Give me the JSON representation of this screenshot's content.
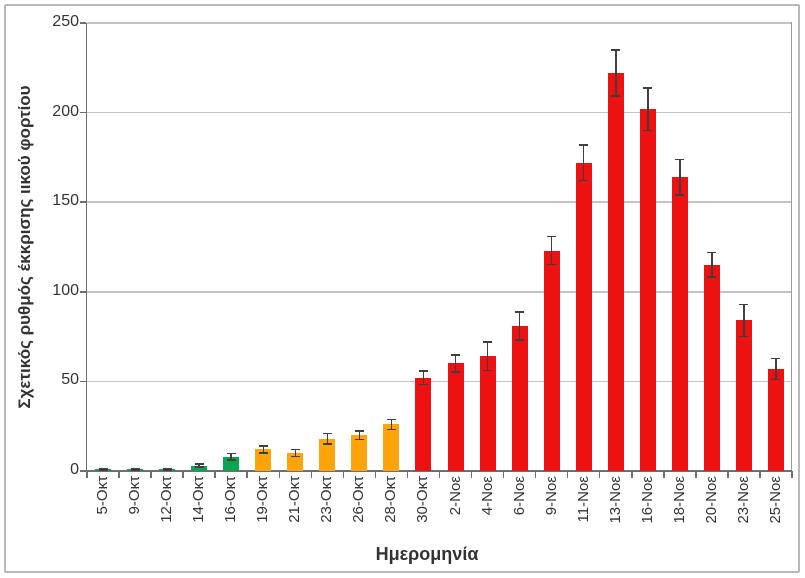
{
  "chart_data": {
    "type": "bar",
    "title": "",
    "xlabel": "Ημερομηνία",
    "ylabel": "Σχετικός ρυθμός έκκρισης ιικού φορτίου",
    "ylim": [
      0,
      250
    ],
    "yticks": [
      0,
      50,
      100,
      150,
      200,
      250
    ],
    "grid": true,
    "legend_position": "none",
    "error_bars": true,
    "categories": [
      "5-Οκτ",
      "9-Οκτ",
      "12-Οκτ",
      "14-Οκτ",
      "16-Οκτ",
      "19-Οκτ",
      "21-Οκτ",
      "23-Οκτ",
      "26-Οκτ",
      "28-Οκτ",
      "30-Οκτ",
      "2-Νοε",
      "4-Νοε",
      "6-Νοε",
      "9-Νοε",
      "11-Νοε",
      "13-Νοε",
      "16-Νοε",
      "18-Νοε",
      "20-Νοε",
      "23-Νοε",
      "25-Νοε"
    ],
    "values": [
      1,
      1,
      1,
      3,
      8,
      12,
      10,
      18,
      20,
      26,
      52,
      60,
      64,
      81,
      123,
      172,
      222,
      202,
      164,
      115,
      84,
      57
    ],
    "errors": [
      0.5,
      0.5,
      0.5,
      1,
      2,
      2,
      2,
      3,
      2.5,
      3,
      4,
      5,
      8,
      8,
      8,
      10,
      13,
      12,
      10,
      7,
      9,
      6
    ],
    "bar_colors": [
      "#0aa551",
      "#0aa551",
      "#0aa551",
      "#0aa551",
      "#0aa551",
      "#ffa408",
      "#ffa408",
      "#ffa408",
      "#ffa408",
      "#ffa408",
      "#ee1111",
      "#ee1111",
      "#ee1111",
      "#ee1111",
      "#ee1111",
      "#ee1111",
      "#ee1111",
      "#ee1111",
      "#ee1111",
      "#ee1111",
      "#ee1111",
      "#ee1111"
    ]
  },
  "colors": {
    "green": "#0aa551",
    "orange": "#ffa408",
    "red": "#ee1111",
    "grid": "#c3c3c3",
    "axis": "#6f6f6f",
    "plot_border": "#9c9c9c",
    "error_bar": "#3f3f3f",
    "text": "#343434",
    "outer_frame": "#b9b9b9",
    "background": "#ffffff"
  }
}
